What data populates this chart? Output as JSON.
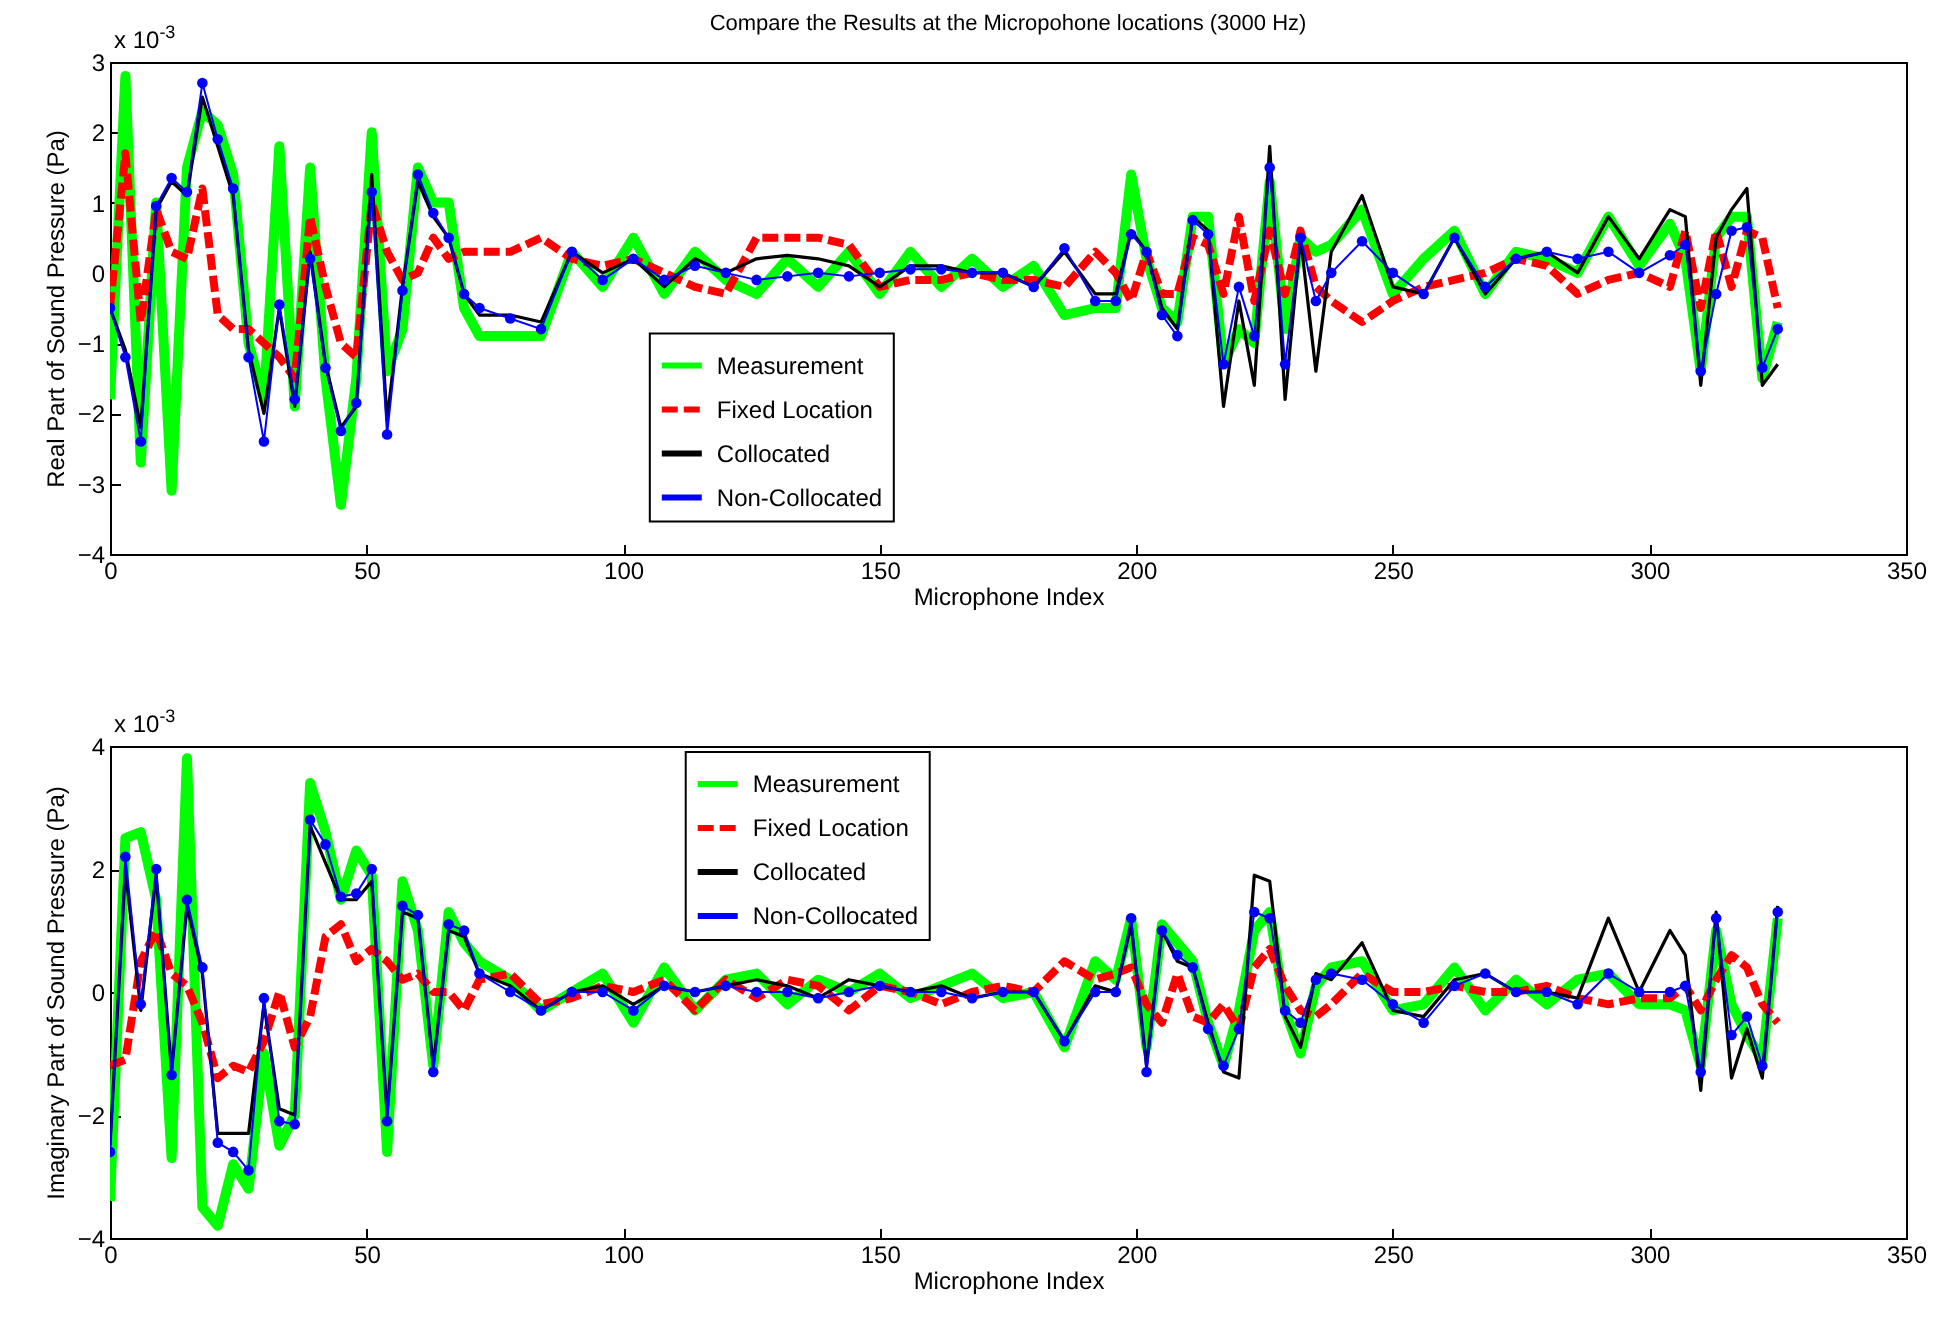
{
  "chart_data": [
    {
      "type": "line",
      "title": "Compare the Results at the Micropohone locations (3000 Hz)",
      "xlabel": "Microphone Index",
      "ylabel": "Real Part of Sound Pressure (Pa)",
      "annotations": [
        "x 10$^{-3}$"
      ],
      "x": [
        0,
        3,
        6,
        9,
        12,
        15,
        18,
        21,
        24,
        27,
        30,
        33,
        36,
        39,
        42,
        45,
        48,
        51,
        54,
        57,
        60,
        63,
        66,
        69,
        72,
        78,
        84,
        90,
        96,
        102,
        108,
        114,
        120,
        126,
        132,
        138,
        144,
        150,
        156,
        162,
        168,
        174,
        180,
        186,
        192,
        196,
        199,
        202,
        205,
        208,
        211,
        214,
        217,
        220,
        223,
        226,
        229,
        232,
        235,
        238,
        244,
        250,
        256,
        262,
        268,
        274,
        280,
        286,
        292,
        298,
        304,
        307,
        310,
        313,
        316,
        319,
        322,
        325
      ],
      "xlim": [
        0,
        350
      ],
      "xticks": [
        0,
        50,
        100,
        150,
        200,
        250,
        300,
        350
      ],
      "ylim": [
        -4,
        3
      ],
      "yticks": [
        -4,
        -3,
        -2,
        -1,
        0,
        1,
        2,
        3
      ],
      "legend": "bottom",
      "series": [
        {
          "name": "Measurement",
          "color": "#00ff00",
          "line_style": "solid",
          "values": [
            -1.8,
            2.8,
            -2.7,
            1.0,
            -3.1,
            1.5,
            2.3,
            2.1,
            1.4,
            -1.0,
            -1.8,
            1.8,
            -1.9,
            1.5,
            -1.5,
            -3.3,
            -1.5,
            2.0,
            -1.4,
            -0.8,
            1.5,
            1.0,
            1.0,
            -0.5,
            -0.9,
            -0.9,
            -0.9,
            0.3,
            -0.2,
            0.5,
            -0.3,
            0.3,
            -0.1,
            -0.3,
            0.2,
            -0.2,
            0.3,
            -0.3,
            0.3,
            -0.2,
            0.2,
            -0.2,
            0.1,
            -0.6,
            -0.5,
            -0.5,
            1.4,
            0.2,
            -0.5,
            -0.7,
            0.8,
            0.8,
            -1.3,
            -0.8,
            -1.0,
            1.3,
            -0.8,
            0.5,
            0.3,
            0.4,
            0.9,
            -0.3,
            0.2,
            0.6,
            -0.3,
            0.3,
            0.2,
            0.0,
            0.8,
            0.1,
            0.7,
            0.2,
            -1.4,
            0.5,
            0.8,
            0.8,
            -1.5,
            -0.7
          ]
        },
        {
          "name": "Fixed Location",
          "color": "#ff0000",
          "line_style": "dashed",
          "values": [
            -0.5,
            1.7,
            -0.7,
            0.9,
            0.3,
            0.2,
            1.2,
            -0.6,
            -0.8,
            -0.8,
            -1.0,
            -1.2,
            -1.5,
            0.8,
            -0.2,
            -1.0,
            -1.2,
            1.0,
            0.3,
            -0.1,
            0.0,
            0.5,
            0.2,
            0.3,
            0.3,
            0.3,
            0.5,
            0.2,
            0.1,
            0.2,
            0.0,
            -0.2,
            -0.3,
            0.5,
            0.5,
            0.5,
            0.4,
            -0.2,
            -0.1,
            -0.1,
            0.0,
            -0.1,
            -0.1,
            -0.2,
            0.3,
            0.0,
            -0.4,
            0.3,
            -0.3,
            -0.3,
            0.5,
            0.4,
            -0.3,
            0.8,
            -0.4,
            0.6,
            -0.3,
            0.6,
            -0.2,
            -0.4,
            -0.7,
            -0.4,
            -0.2,
            -0.1,
            0.0,
            0.2,
            0.1,
            -0.3,
            -0.1,
            0.0,
            -0.2,
            0.6,
            -0.5,
            0.6,
            -0.2,
            0.6,
            0.5,
            -0.5
          ]
        },
        {
          "name": "Collocated",
          "color": "#000000",
          "line_style": "solid",
          "values": [
            -0.5,
            -1.1,
            -2.2,
            0.9,
            1.3,
            1.1,
            2.5,
            1.8,
            1.1,
            -1.1,
            -2.0,
            -0.5,
            -1.9,
            0.3,
            -1.3,
            -2.2,
            -1.9,
            1.4,
            -2.1,
            -0.2,
            1.3,
            0.8,
            0.5,
            -0.3,
            -0.6,
            -0.6,
            -0.7,
            0.3,
            0.0,
            0.2,
            -0.2,
            0.2,
            0.0,
            0.2,
            0.25,
            0.2,
            0.1,
            -0.2,
            0.1,
            0.1,
            0.0,
            0.0,
            -0.2,
            0.3,
            -0.3,
            -0.3,
            0.6,
            0.3,
            -0.5,
            -0.8,
            0.8,
            0.6,
            -1.9,
            -0.4,
            -1.6,
            1.8,
            -1.8,
            0.5,
            -1.4,
            0.3,
            1.1,
            -0.2,
            -0.3,
            0.5,
            -0.3,
            0.2,
            0.3,
            0.0,
            0.8,
            0.2,
            0.9,
            0.8,
            -1.6,
            0.5,
            0.9,
            1.2,
            -1.6,
            -1.3
          ]
        },
        {
          "name": "Non-Collocated",
          "color": "#0000ff",
          "line_style": "solid",
          "marker": "circle",
          "values": [
            -0.5,
            -1.2,
            -2.4,
            0.95,
            1.35,
            1.15,
            2.7,
            1.9,
            1.2,
            -1.2,
            -2.4,
            -0.45,
            -1.8,
            0.2,
            -1.35,
            -2.25,
            -1.85,
            1.15,
            -2.3,
            -0.25,
            1.4,
            0.85,
            0.5,
            -0.3,
            -0.5,
            -0.65,
            -0.8,
            0.3,
            -0.1,
            0.2,
            -0.1,
            0.1,
            0.0,
            -0.1,
            -0.05,
            0.0,
            -0.05,
            0.0,
            0.05,
            0.05,
            0.0,
            0.0,
            -0.2,
            0.35,
            -0.4,
            -0.4,
            0.55,
            0.3,
            -0.6,
            -0.9,
            0.75,
            0.55,
            -1.3,
            -0.2,
            -0.9,
            1.5,
            -1.3,
            0.5,
            -0.4,
            0.0,
            0.45,
            0.0,
            -0.3,
            0.5,
            -0.2,
            0.2,
            0.3,
            0.2,
            0.3,
            0.0,
            0.25,
            0.4,
            -1.4,
            -0.3,
            0.6,
            0.65,
            -1.35,
            -0.8
          ]
        }
      ]
    },
    {
      "type": "line",
      "xlabel": "Microphone Index",
      "ylabel": "Imaginary Part of Sound Pressure (Pa)",
      "annotations": [
        "x 10$^{-3}$"
      ],
      "x": [
        0,
        3,
        6,
        9,
        12,
        15,
        18,
        21,
        24,
        27,
        30,
        33,
        36,
        39,
        42,
        45,
        48,
        51,
        54,
        57,
        60,
        63,
        66,
        69,
        72,
        78,
        84,
        90,
        96,
        102,
        108,
        114,
        120,
        126,
        132,
        138,
        144,
        150,
        156,
        162,
        168,
        174,
        180,
        186,
        192,
        196,
        199,
        202,
        205,
        208,
        211,
        214,
        217,
        220,
        223,
        226,
        229,
        232,
        235,
        238,
        244,
        250,
        256,
        262,
        268,
        274,
        280,
        286,
        292,
        298,
        304,
        307,
        310,
        313,
        316,
        319,
        322,
        325
      ],
      "xlim": [
        0,
        350
      ],
      "xticks": [
        0,
        50,
        100,
        150,
        200,
        250,
        300,
        350
      ],
      "ylim": [
        -4,
        4
      ],
      "yticks": [
        -4,
        -2,
        0,
        2,
        4
      ],
      "legend": "top",
      "series": [
        {
          "name": "Measurement",
          "color": "#00ff00",
          "line_style": "solid",
          "values": [
            -3.4,
            2.5,
            2.6,
            1.5,
            -2.7,
            3.8,
            -3.5,
            -3.8,
            -2.8,
            -3.2,
            -1.0,
            -2.5,
            -2.0,
            3.4,
            2.6,
            1.5,
            2.3,
            1.9,
            -2.6,
            1.8,
            1.0,
            -1.2,
            1.3,
            0.8,
            0.5,
            0.2,
            -0.3,
            0.0,
            0.3,
            -0.5,
            0.4,
            -0.3,
            0.2,
            0.3,
            -0.2,
            0.2,
            0.0,
            0.3,
            -0.1,
            0.1,
            0.3,
            -0.1,
            0.0,
            -0.9,
            0.5,
            0.2,
            1.2,
            -0.9,
            1.1,
            0.8,
            0.5,
            -0.5,
            -1.2,
            -0.3,
            1.0,
            1.3,
            -0.3,
            -1.0,
            0.1,
            0.4,
            0.5,
            -0.3,
            -0.2,
            0.4,
            -0.3,
            0.2,
            -0.2,
            0.2,
            0.3,
            -0.2,
            -0.2,
            -0.3,
            -1.2,
            1.0,
            -0.2,
            -0.7,
            -1.1,
            1.2
          ]
        },
        {
          "name": "Fixed Location",
          "color": "#ff0000",
          "line_style": "dashed",
          "values": [
            -1.2,
            -1.1,
            0.5,
            1.0,
            0.3,
            0.1,
            -0.5,
            -1.4,
            -1.2,
            -1.3,
            -0.8,
            0.0,
            -0.9,
            -0.4,
            0.9,
            1.1,
            0.5,
            0.7,
            0.5,
            0.2,
            0.3,
            0.0,
            0.0,
            -0.3,
            0.2,
            0.3,
            -0.2,
            -0.1,
            0.1,
            0.0,
            0.2,
            -0.3,
            0.2,
            -0.1,
            0.2,
            0.1,
            -0.3,
            0.1,
            0.0,
            -0.2,
            0.0,
            0.1,
            0.0,
            0.5,
            0.2,
            0.3,
            0.4,
            -0.2,
            -0.5,
            0.3,
            -0.4,
            -0.5,
            -0.2,
            -0.6,
            0.4,
            0.7,
            0.1,
            -0.3,
            -0.4,
            -0.2,
            0.3,
            0.0,
            0.0,
            0.1,
            0.0,
            0.0,
            0.1,
            -0.1,
            -0.2,
            -0.1,
            -0.1,
            0.1,
            -0.3,
            0.2,
            0.6,
            0.4,
            -0.2,
            -0.5
          ]
        },
        {
          "name": "Collocated",
          "color": "#000000",
          "line_style": "solid",
          "values": [
            -2.5,
            2.0,
            -0.3,
            1.9,
            -1.3,
            1.4,
            0.3,
            -2.3,
            -2.3,
            -2.3,
            -0.2,
            -1.9,
            -2.0,
            2.7,
            2.1,
            1.5,
            1.5,
            1.8,
            -2.0,
            1.3,
            1.2,
            -1.2,
            1.0,
            0.9,
            0.3,
            0.1,
            -0.3,
            0.0,
            0.1,
            -0.2,
            0.1,
            0.0,
            0.1,
            0.2,
            0.1,
            -0.1,
            0.2,
            0.1,
            0.0,
            0.1,
            -0.1,
            0.0,
            0.0,
            -0.8,
            0.1,
            0.0,
            1.1,
            -1.2,
            1.0,
            0.5,
            0.4,
            -0.5,
            -1.3,
            -1.4,
            1.9,
            1.8,
            -0.4,
            -0.9,
            0.3,
            0.2,
            0.8,
            -0.3,
            -0.4,
            0.2,
            0.3,
            0.0,
            0.0,
            -0.1,
            1.2,
            0.0,
            1.0,
            0.6,
            -1.6,
            1.3,
            -1.4,
            -0.6,
            -1.4,
            1.4
          ]
        },
        {
          "name": "Non-Collocated",
          "color": "#0000ff",
          "line_style": "solid",
          "marker": "circle",
          "values": [
            -2.6,
            2.2,
            -0.2,
            2.0,
            -1.35,
            1.5,
            0.4,
            -2.45,
            -2.6,
            -2.9,
            -0.1,
            -2.1,
            -2.15,
            2.8,
            2.4,
            1.55,
            1.6,
            2.0,
            -2.1,
            1.4,
            1.25,
            -1.3,
            1.1,
            1.0,
            0.3,
            0.0,
            -0.3,
            0.0,
            0.0,
            -0.3,
            0.1,
            0.0,
            0.1,
            0.0,
            0.0,
            -0.1,
            0.0,
            0.1,
            0.0,
            0.0,
            -0.1,
            0.0,
            0.0,
            -0.8,
            0.0,
            0.0,
            1.2,
            -1.3,
            1.0,
            0.6,
            0.4,
            -0.6,
            -1.2,
            -0.6,
            1.3,
            1.2,
            -0.3,
            -0.5,
            0.2,
            0.3,
            0.2,
            -0.2,
            -0.5,
            0.1,
            0.3,
            0.0,
            0.0,
            -0.2,
            0.3,
            0.0,
            0.0,
            0.1,
            -1.3,
            1.2,
            -0.7,
            -0.4,
            -1.2,
            1.3
          ]
        }
      ]
    }
  ]
}
